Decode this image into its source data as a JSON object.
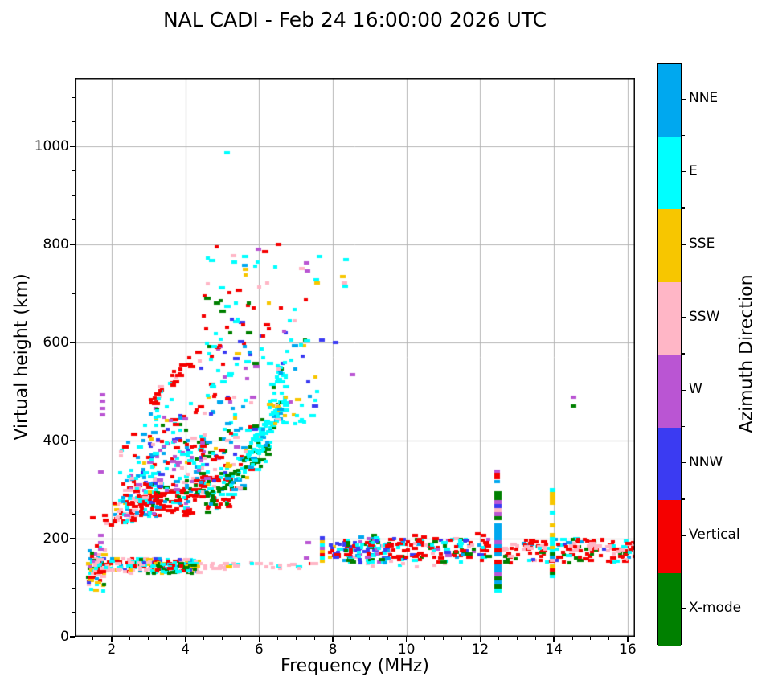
{
  "chart_data": {
    "type": "scatter",
    "title": "NAL CADI - Feb 24 16:00:00 2026 UTC",
    "xlabel": "Frequency (MHz)",
    "ylabel": "Virtual height (km)",
    "xlim": [
      1.0,
      16.2
    ],
    "ylim": [
      0,
      1140
    ],
    "xticks": [
      2,
      4,
      6,
      8,
      10,
      12,
      14,
      16
    ],
    "yticks": [
      0,
      200,
      400,
      600,
      800,
      1000
    ],
    "x_minor_step": 0.5,
    "y_minor_step": 50,
    "grid": true,
    "grid_color": "#b3b3b3",
    "colorbar": {
      "label": "Azimuth Direction",
      "segments": [
        {
          "label": "NNE",
          "color": "#00A8EF"
        },
        {
          "label": "E",
          "color": "#00FFFF"
        },
        {
          "label": "SSE",
          "color": "#F7C600"
        },
        {
          "label": "SSW",
          "color": "#FFB6C6"
        },
        {
          "label": "W",
          "color": "#BA55D3"
        },
        {
          "label": "NNW",
          "color": "#3B3BF2"
        },
        {
          "label": "Vertical",
          "color": "#F50000"
        },
        {
          "label": "X-mode",
          "color": "#008000"
        }
      ]
    },
    "palette": {
      "NNE": "#00A8EF",
      "E": "#00FFFF",
      "SSE": "#F7C600",
      "SSW": "#FFB6C6",
      "W": "#BA55D3",
      "NNW": "#3B3BF2",
      "V": "#F50000",
      "X": "#008000"
    },
    "clusters": [
      {
        "id": "e-left-blob",
        "t": "box",
        "f": [
          1.35,
          1.8
        ],
        "h": [
          92,
          185
        ],
        "n": 70,
        "w": {
          "V": 30,
          "SSE": 18,
          "E": 15,
          "SSW": 15,
          "NNW": 8,
          "W": 6,
          "X": 4,
          "NNE": 4
        }
      },
      {
        "id": "e-trace",
        "t": "box",
        "f": [
          1.5,
          4.35
        ],
        "h": [
          130,
          160
        ],
        "n": 200,
        "w": {
          "SSW": 38,
          "V": 17,
          "E": 15,
          "SSE": 10,
          "X": 8,
          "NNE": 5,
          "NNW": 4,
          "W": 3
        }
      },
      {
        "id": "e-trace-cyan-green",
        "t": "box",
        "f": [
          3.1,
          4.3
        ],
        "h": [
          130,
          150
        ],
        "n": 60,
        "w": {
          "E": 45,
          "X": 30,
          "V": 10,
          "SSE": 10,
          "NNW": 5
        }
      },
      {
        "id": "es-pink-tail",
        "t": "box",
        "f": [
          4.35,
          7.7
        ],
        "h": [
          138,
          152
        ],
        "n": 38,
        "w": {
          "SSW": 75,
          "E": 12,
          "V": 6,
          "SSE": 7
        }
      },
      {
        "id": "es-pink-far",
        "t": "box",
        "f": [
          8.0,
          11.5
        ],
        "h": [
          140,
          150
        ],
        "n": 7,
        "w": {
          "SSW": 90,
          "E": 10
        }
      },
      {
        "id": "f-cloud-left-low",
        "t": "box",
        "f": [
          2.05,
          2.65
        ],
        "h": [
          232,
          275
        ],
        "n": 40,
        "w": {
          "V": 50,
          "SSW": 20,
          "E": 15,
          "SSE": 10,
          "NNE": 5
        }
      },
      {
        "id": "f-cloud-left",
        "t": "box",
        "f": [
          2.2,
          3.2
        ],
        "h": [
          245,
          335
        ],
        "n": 80,
        "w": {
          "V": 35,
          "E": 20,
          "NNE": 12,
          "SSW": 10,
          "W": 10,
          "X": 5,
          "NNW": 5,
          "SSE": 3
        }
      },
      {
        "id": "f-cloud-bottom-red",
        "t": "box",
        "f": [
          2.6,
          4.3
        ],
        "h": [
          248,
          302
        ],
        "n": 100,
        "w": {
          "V": 55,
          "E": 15,
          "NNE": 10,
          "SSW": 8,
          "X": 5,
          "W": 4,
          "NNW": 3
        }
      },
      {
        "id": "f-cloud-mid",
        "t": "box",
        "f": [
          2.8,
          4.5
        ],
        "h": [
          295,
          405
        ],
        "n": 130,
        "w": {
          "W": 22,
          "E": 18,
          "NNE": 15,
          "V": 15,
          "SSW": 10,
          "NNW": 8,
          "X": 7,
          "SSE": 5
        }
      },
      {
        "id": "f-cloud-left-upper",
        "t": "box",
        "f": [
          2.2,
          2.9
        ],
        "h": [
          330,
          420
        ],
        "n": 12,
        "w": {
          "SSW": 30,
          "V": 30,
          "E": 20,
          "NNE": 20
        }
      },
      {
        "id": "f-arc-red-right",
        "t": "box",
        "f": [
          4.2,
          5.3
        ],
        "h": [
          262,
          330
        ],
        "n": 60,
        "w": {
          "V": 55,
          "E": 20,
          "NNE": 10,
          "SSW": 8,
          "X": 7
        }
      },
      {
        "id": "f-cloud-right",
        "t": "box",
        "f": [
          4.4,
          5.7
        ],
        "h": [
          300,
          425
        ],
        "n": 80,
        "w": {
          "E": 25,
          "V": 20,
          "NNE": 15,
          "X": 12,
          "W": 10,
          "SSW": 8,
          "NNW": 5,
          "SSE": 5
        }
      },
      {
        "id": "x-mode-arc",
        "t": "trace",
        "a": [
          4.6,
          275
        ],
        "b": [
          6.3,
          390
        ],
        "j": 22,
        "n": 70,
        "w": {
          "X": 68,
          "E": 15,
          "NNE": 10,
          "V": 7
        }
      },
      {
        "id": "cusp-cyan",
        "t": "trace",
        "a": [
          5.75,
          365
        ],
        "b": [
          6.55,
          470
        ],
        "j": 25,
        "n": 80,
        "w": {
          "E": 78,
          "NNE": 12,
          "SSE": 5,
          "X": 5
        }
      },
      {
        "id": "cusp-column",
        "t": "box",
        "f": [
          6.25,
          6.75
        ],
        "h": [
          430,
          565
        ],
        "n": 45,
        "w": {
          "E": 60,
          "SSE": 15,
          "SSW": 10,
          "X": 8,
          "NNE": 7
        }
      },
      {
        "id": "mid-scatter",
        "t": "box",
        "f": [
          2.9,
          4.4
        ],
        "h": [
          400,
          490
        ],
        "n": 40,
        "w": {
          "V": 30,
          "E": 25,
          "NNE": 15,
          "W": 10,
          "X": 8,
          "SSE": 6,
          "NNW": 6
        }
      },
      {
        "id": "red-streak",
        "t": "trace",
        "a": [
          3.05,
          480
        ],
        "b": [
          4.15,
          560
        ],
        "j": 10,
        "n": 32,
        "w": {
          "V": 80,
          "E": 12,
          "SSW": 8
        }
      },
      {
        "id": "upper-scatter-1",
        "t": "box",
        "f": [
          4.3,
          5.9
        ],
        "h": [
          420,
          600
        ],
        "n": 55,
        "w": {
          "E": 25,
          "V": 20,
          "W": 12,
          "NNW": 10,
          "X": 10,
          "SSE": 8,
          "NNE": 8,
          "SSW": 7
        }
      },
      {
        "id": "upper-scatter-2",
        "t": "box",
        "f": [
          4.4,
          7.35
        ],
        "h": [
          555,
          705
        ],
        "n": 60,
        "w": {
          "E": 30,
          "V": 22,
          "X": 13,
          "SSE": 10,
          "NNE": 8,
          "NNW": 7,
          "W": 6,
          "SSW": 4
        }
      },
      {
        "id": "right-sparse",
        "t": "box",
        "f": [
          6.55,
          7.6
        ],
        "h": [
          425,
          555
        ],
        "n": 22,
        "w": {
          "E": 55,
          "NNW": 15,
          "SSE": 10,
          "W": 10,
          "NNE": 10
        }
      },
      {
        "id": "top-sparse",
        "t": "box",
        "f": [
          4.5,
          6.6
        ],
        "h": [
          700,
          800
        ],
        "n": 14,
        "w": {
          "E": 30,
          "SSE": 20,
          "SSW": 15,
          "V": 15,
          "W": 10,
          "X": 10
        }
      },
      {
        "id": "band-8mhz-blob",
        "t": "box",
        "f": [
          7.9,
          8.2
        ],
        "h": [
          158,
          192
        ],
        "n": 15,
        "w": {
          "NNW": 45,
          "V": 30,
          "E": 15,
          "SSE": 10
        }
      },
      {
        "id": "band-83-94",
        "t": "box",
        "f": [
          8.3,
          9.45
        ],
        "h": [
          150,
          200
        ],
        "n": 110,
        "w": {
          "NNW": 25,
          "V": 18,
          "E": 15,
          "X": 15,
          "W": 13,
          "NNE": 12,
          "SSW": 2
        }
      },
      {
        "id": "band-94-122",
        "t": "box",
        "f": [
          9.45,
          12.25
        ],
        "h": [
          152,
          200
        ],
        "n": 140,
        "w": {
          "V": 50,
          "X": 13,
          "E": 10,
          "NNE": 8,
          "SSW": 8,
          "NNW": 6,
          "W": 5
        }
      },
      {
        "id": "band-125-16",
        "t": "box",
        "f": [
          12.55,
          16.18
        ],
        "h": [
          150,
          200
        ],
        "n": 140,
        "w": {
          "V": 55,
          "SSW": 12,
          "E": 12,
          "X": 12,
          "NNE": 5,
          "NNW": 4
        }
      },
      {
        "id": "band-pink-top",
        "t": "box",
        "f": [
          12.4,
          16.18
        ],
        "h": [
          174,
          190
        ],
        "n": 35,
        "w": {
          "SSW": 85,
          "V": 10,
          "E": 5
        }
      },
      {
        "id": "stripe-7.7MHz",
        "t": "vstripe",
        "f": 7.7,
        "h": [
          150,
          205
        ],
        "skip": 0.3,
        "cw": 6,
        "dh": 6.5,
        "w": {
          "NNW": 40,
          "V": 15,
          "W": 15,
          "E": 15,
          "SSE": 15
        }
      },
      {
        "id": "stripe-12.4MHz",
        "t": "vstripe",
        "f": 12.42,
        "h": [
          88,
          295
        ],
        "skip": 0.12,
        "cw": 9,
        "dh": 8.2,
        "w": {
          "W": 32,
          "NNE": 25,
          "V": 13,
          "X": 12,
          "E": 8,
          "NNW": 6,
          "SSW": 4
        }
      },
      {
        "id": "stripe-13.9MHz",
        "t": "vstripe",
        "f": 13.93,
        "h": [
          118,
          300
        ],
        "skip": 0.3,
        "cw": 7,
        "dh": 6.5,
        "w": {
          "SSE": 32,
          "E": 25,
          "SSW": 12,
          "X": 12,
          "NNE": 9,
          "V": 6,
          "NNW": 4
        }
      }
    ],
    "points": [
      [
        1.68,
        178,
        "W"
      ],
      [
        1.68,
        192,
        "W"
      ],
      [
        1.68,
        206,
        "W"
      ],
      [
        1.68,
        337,
        "W"
      ],
      [
        1.71,
        452,
        "W"
      ],
      [
        1.71,
        466,
        "W"
      ],
      [
        1.71,
        481,
        "W"
      ],
      [
        1.71,
        494,
        "W"
      ],
      [
        1.45,
        243,
        "V"
      ],
      [
        1.78,
        247,
        "V"
      ],
      [
        1.85,
        232,
        "SSW"
      ],
      [
        1.8,
        238,
        "V"
      ],
      [
        1.95,
        228,
        "V"
      ],
      [
        5.1,
        988,
        "E"
      ],
      [
        5.28,
        777,
        "SSW"
      ],
      [
        5.3,
        765,
        "E"
      ],
      [
        5.58,
        757,
        "NNE"
      ],
      [
        5.6,
        749,
        "SSE"
      ],
      [
        5.95,
        790,
        "W"
      ],
      [
        6.5,
        800,
        "V"
      ],
      [
        7.12,
        752,
        "SSW"
      ],
      [
        7.25,
        762,
        "W"
      ],
      [
        7.28,
        747,
        "W"
      ],
      [
        7.52,
        729,
        "E"
      ],
      [
        7.55,
        721,
        "SSE"
      ],
      [
        7.6,
        776,
        "E"
      ],
      [
        8.25,
        735,
        "SSE"
      ],
      [
        8.28,
        722,
        "SSW"
      ],
      [
        8.3,
        715,
        "E"
      ],
      [
        8.33,
        770,
        "E"
      ],
      [
        7.67,
        605,
        "NNW"
      ],
      [
        8.05,
        601,
        "NNW"
      ],
      [
        8.5,
        534,
        "W"
      ],
      [
        7.3,
        192,
        "W"
      ],
      [
        7.25,
        160,
        "W"
      ],
      [
        10.2,
        206,
        "V"
      ],
      [
        10.45,
        204,
        "V"
      ],
      [
        11.9,
        210,
        "V"
      ],
      [
        12.05,
        207,
        "V"
      ],
      [
        8.75,
        203,
        "NNE"
      ],
      [
        9.1,
        207,
        "X"
      ],
      [
        9.15,
        202,
        "E"
      ],
      [
        12.42,
        338,
        "W"
      ],
      [
        12.42,
        331,
        "V"
      ],
      [
        12.42,
        324,
        "V"
      ],
      [
        12.42,
        317,
        "NNE"
      ],
      [
        14.5,
        489,
        "W"
      ],
      [
        14.5,
        470,
        "X"
      ]
    ]
  }
}
